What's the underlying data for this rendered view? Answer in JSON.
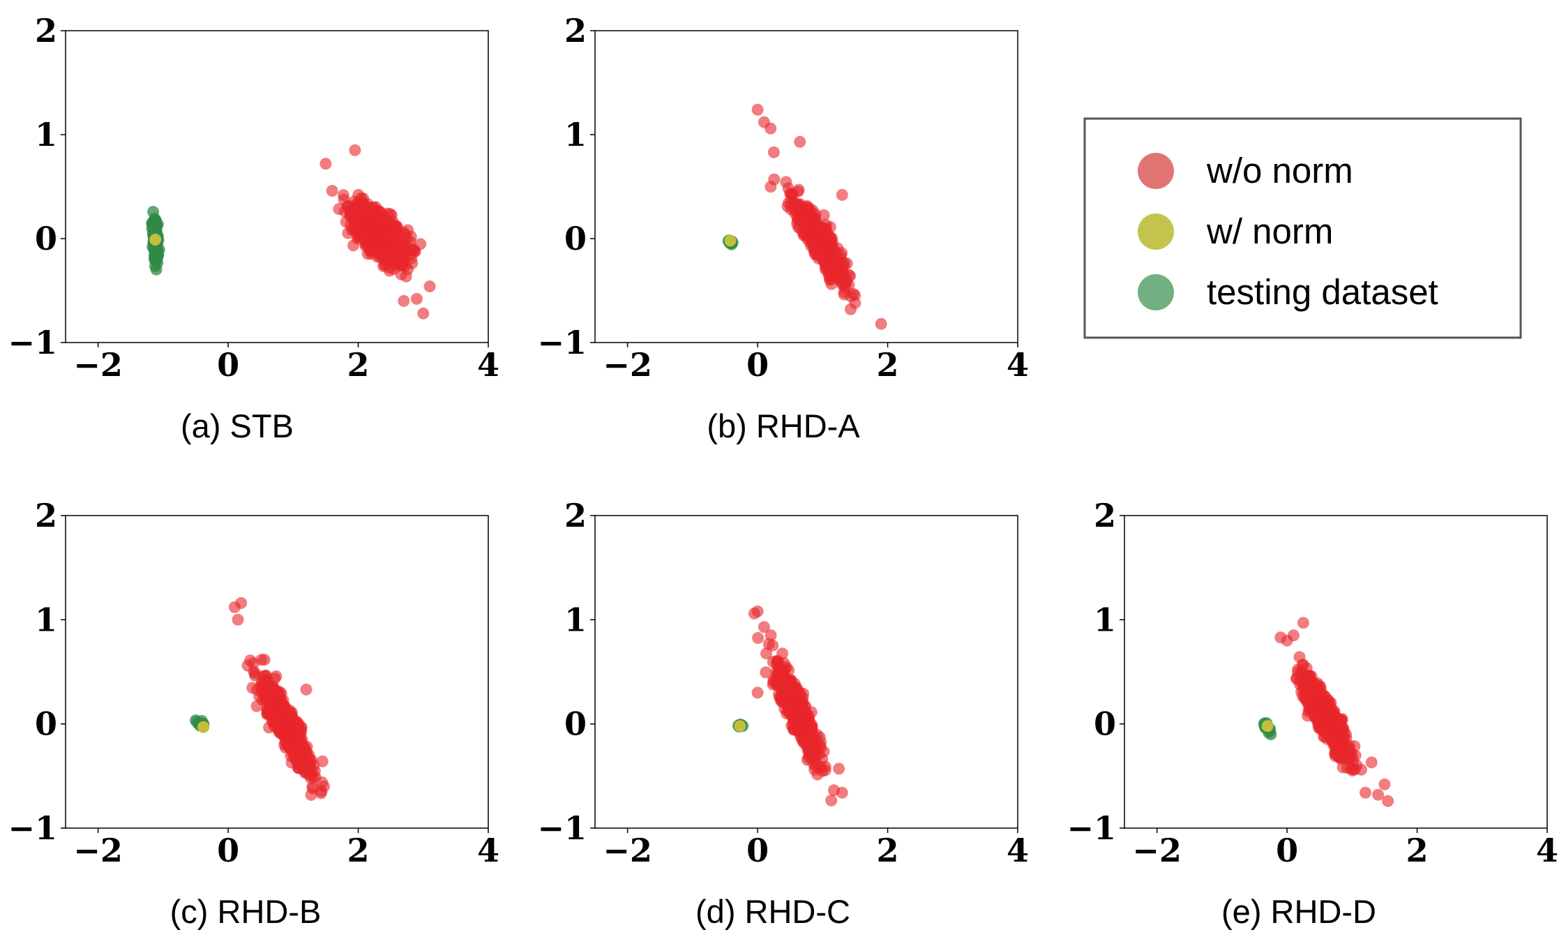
{
  "colors": {
    "wo_norm": "#e8262b",
    "w_norm": "#c2bf3c",
    "testing": "#2f8a45",
    "legend_frame": "#555555"
  },
  "legend": {
    "items": [
      {
        "label": "w/o norm",
        "color": "#e37474"
      },
      {
        "label": "w/ norm",
        "color": "#c4c34e"
      },
      {
        "label": "testing dataset",
        "color": "#72b081"
      }
    ],
    "position": "top-right"
  },
  "chart_data": [
    {
      "type": "scatter",
      "caption": "(a) STB",
      "xlim": [
        -2.5,
        4
      ],
      "ylim": [
        -1,
        2
      ],
      "xticks": [
        {
          "v": -2,
          "label": "−2"
        },
        {
          "v": 0,
          "label": "0"
        },
        {
          "v": 2,
          "label": "2"
        },
        {
          "v": 4,
          "label": "4"
        }
      ],
      "yticks": [
        {
          "v": -1,
          "label": "−1"
        },
        {
          "v": 0,
          "label": "0"
        },
        {
          "v": 1,
          "label": "1"
        },
        {
          "v": 2,
          "label": "2"
        }
      ],
      "series": [
        {
          "name": "w/o norm",
          "cluster": {
            "center": [
              2.3,
              0.05
            ],
            "slope": -0.55,
            "major": 0.42,
            "minor": 0.17,
            "count": 700
          },
          "outliers": [
            [
              1.5,
              0.72
            ],
            [
              1.6,
              0.46
            ],
            [
              1.95,
              0.85
            ],
            [
              2.9,
              -0.58
            ],
            [
              3.0,
              -0.72
            ],
            [
              3.1,
              -0.46
            ],
            [
              2.7,
              -0.6
            ]
          ]
        },
        {
          "name": "testing dataset",
          "cluster": {
            "center": [
              -1.12,
              0.0
            ],
            "slope": -20,
            "major": 0.2,
            "minor": 0.04,
            "count": 90
          },
          "outliers": []
        },
        {
          "name": "w/ norm",
          "points": [
            [
              -1.12,
              -0.01
            ]
          ]
        }
      ]
    },
    {
      "type": "scatter",
      "caption": "(b) RHD-A",
      "xlim": [
        -2.5,
        4
      ],
      "ylim": [
        -1,
        2
      ],
      "xticks": [
        {
          "v": -2,
          "label": "−2"
        },
        {
          "v": 0,
          "label": "0"
        },
        {
          "v": 2,
          "label": "2"
        },
        {
          "v": 4,
          "label": "4"
        }
      ],
      "yticks": [
        {
          "v": -1,
          "label": "−1"
        },
        {
          "v": 0,
          "label": "0"
        },
        {
          "v": 1,
          "label": "1"
        },
        {
          "v": 2,
          "label": "2"
        }
      ],
      "series": [
        {
          "name": "w/o norm",
          "cluster": {
            "center": [
              0.95,
              -0.02
            ],
            "slope": -1.0,
            "major": 0.5,
            "minor": 0.11,
            "count": 600
          },
          "outliers": [
            [
              0.0,
              1.24
            ],
            [
              0.1,
              1.12
            ],
            [
              0.2,
              1.06
            ],
            [
              0.25,
              0.83
            ],
            [
              1.9,
              -0.82
            ],
            [
              1.5,
              -0.62
            ],
            [
              1.3,
              0.42
            ],
            [
              0.65,
              0.93
            ]
          ]
        },
        {
          "name": "testing dataset",
          "cluster": {
            "center": [
              -0.42,
              -0.03
            ],
            "slope": -0.5,
            "major": 0.04,
            "minor": 0.02,
            "count": 12
          },
          "outliers": []
        },
        {
          "name": "w/ norm",
          "points": [
            [
              -0.42,
              -0.02
            ]
          ]
        }
      ]
    },
    {
      "type": "scatter",
      "caption": "(c) RHD-B",
      "xlim": [
        -2.5,
        4
      ],
      "ylim": [
        -1,
        2
      ],
      "xticks": [
        {
          "v": -2,
          "label": "−2"
        },
        {
          "v": 0,
          "label": "0"
        },
        {
          "v": 2,
          "label": "2"
        },
        {
          "v": 4,
          "label": "4"
        }
      ],
      "yticks": [
        {
          "v": -1,
          "label": "−1"
        },
        {
          "v": 0,
          "label": "0"
        },
        {
          "v": 1,
          "label": "1"
        },
        {
          "v": 2,
          "label": "2"
        }
      ],
      "series": [
        {
          "name": "w/o norm",
          "cluster": {
            "center": [
              0.88,
              0.0
            ],
            "slope": -1.2,
            "major": 0.5,
            "minor": 0.12,
            "count": 600
          },
          "outliers": [
            [
              0.1,
              1.12
            ],
            [
              0.2,
              1.16
            ],
            [
              0.15,
              1.0
            ],
            [
              1.3,
              -0.62
            ],
            [
              1.45,
              -0.36
            ],
            [
              1.2,
              0.33
            ],
            [
              0.3,
              0.56
            ]
          ]
        },
        {
          "name": "testing dataset",
          "cluster": {
            "center": [
              -0.42,
              0.0
            ],
            "slope": -0.5,
            "major": 0.06,
            "minor": 0.025,
            "count": 14
          },
          "outliers": []
        },
        {
          "name": "w/ norm",
          "points": [
            [
              -0.38,
              -0.03
            ]
          ]
        }
      ]
    },
    {
      "type": "scatter",
      "caption": "(d) RHD-C",
      "xlim": [
        -2.5,
        4
      ],
      "ylim": [
        -1,
        2
      ],
      "xticks": [
        {
          "v": -2,
          "label": "−2"
        },
        {
          "v": 0,
          "label": "0"
        },
        {
          "v": 2,
          "label": "2"
        },
        {
          "v": 4,
          "label": "4"
        }
      ],
      "yticks": [
        {
          "v": -1,
          "label": "−1"
        },
        {
          "v": 0,
          "label": "0"
        },
        {
          "v": 1,
          "label": "1"
        },
        {
          "v": 2,
          "label": "2"
        }
      ],
      "series": [
        {
          "name": "w/o norm",
          "cluster": {
            "center": [
              0.62,
              0.1
            ],
            "slope": -1.4,
            "major": 0.5,
            "minor": 0.11,
            "count": 600
          },
          "outliers": [
            [
              0.0,
              1.08
            ],
            [
              -0.05,
              1.06
            ],
            [
              0.1,
              0.93
            ],
            [
              1.3,
              -0.66
            ],
            [
              1.25,
              -0.43
            ],
            [
              0.0,
              0.3
            ]
          ]
        },
        {
          "name": "testing dataset",
          "cluster": {
            "center": [
              -0.27,
              -0.02
            ],
            "slope": -0.5,
            "major": 0.03,
            "minor": 0.02,
            "count": 8
          },
          "outliers": []
        },
        {
          "name": "w/ norm",
          "points": [
            [
              -0.27,
              -0.02
            ]
          ]
        }
      ]
    },
    {
      "type": "scatter",
      "caption": "(e) RHD-D",
      "xlim": [
        -2.5,
        4
      ],
      "ylim": [
        -1,
        2
      ],
      "xticks": [
        {
          "v": -2,
          "label": "−2"
        },
        {
          "v": 0,
          "label": "0"
        },
        {
          "v": 2,
          "label": "2"
        },
        {
          "v": 4,
          "label": "4"
        }
      ],
      "yticks": [
        {
          "v": -1,
          "label": "−1"
        },
        {
          "v": 0,
          "label": "0"
        },
        {
          "v": 1,
          "label": "1"
        },
        {
          "v": 2,
          "label": "2"
        }
      ],
      "series": [
        {
          "name": "w/o norm",
          "cluster": {
            "center": [
              0.58,
              0.08
            ],
            "slope": -1.1,
            "major": 0.45,
            "minor": 0.12,
            "count": 600
          },
          "outliers": [
            [
              -0.1,
              0.83
            ],
            [
              0.1,
              0.85
            ],
            [
              0.0,
              0.8
            ],
            [
              1.5,
              -0.58
            ],
            [
              1.55,
              -0.74
            ],
            [
              1.4,
              -0.68
            ],
            [
              1.3,
              -0.37
            ],
            [
              0.25,
              0.97
            ]
          ]
        },
        {
          "name": "testing dataset",
          "cluster": {
            "center": [
              -0.3,
              -0.03
            ],
            "slope": -0.5,
            "major": 0.05,
            "minor": 0.03,
            "count": 10
          },
          "outliers": [
            [
              -0.25,
              -0.1
            ]
          ]
        },
        {
          "name": "w/ norm",
          "points": [
            [
              -0.3,
              -0.02
            ]
          ]
        }
      ]
    }
  ]
}
